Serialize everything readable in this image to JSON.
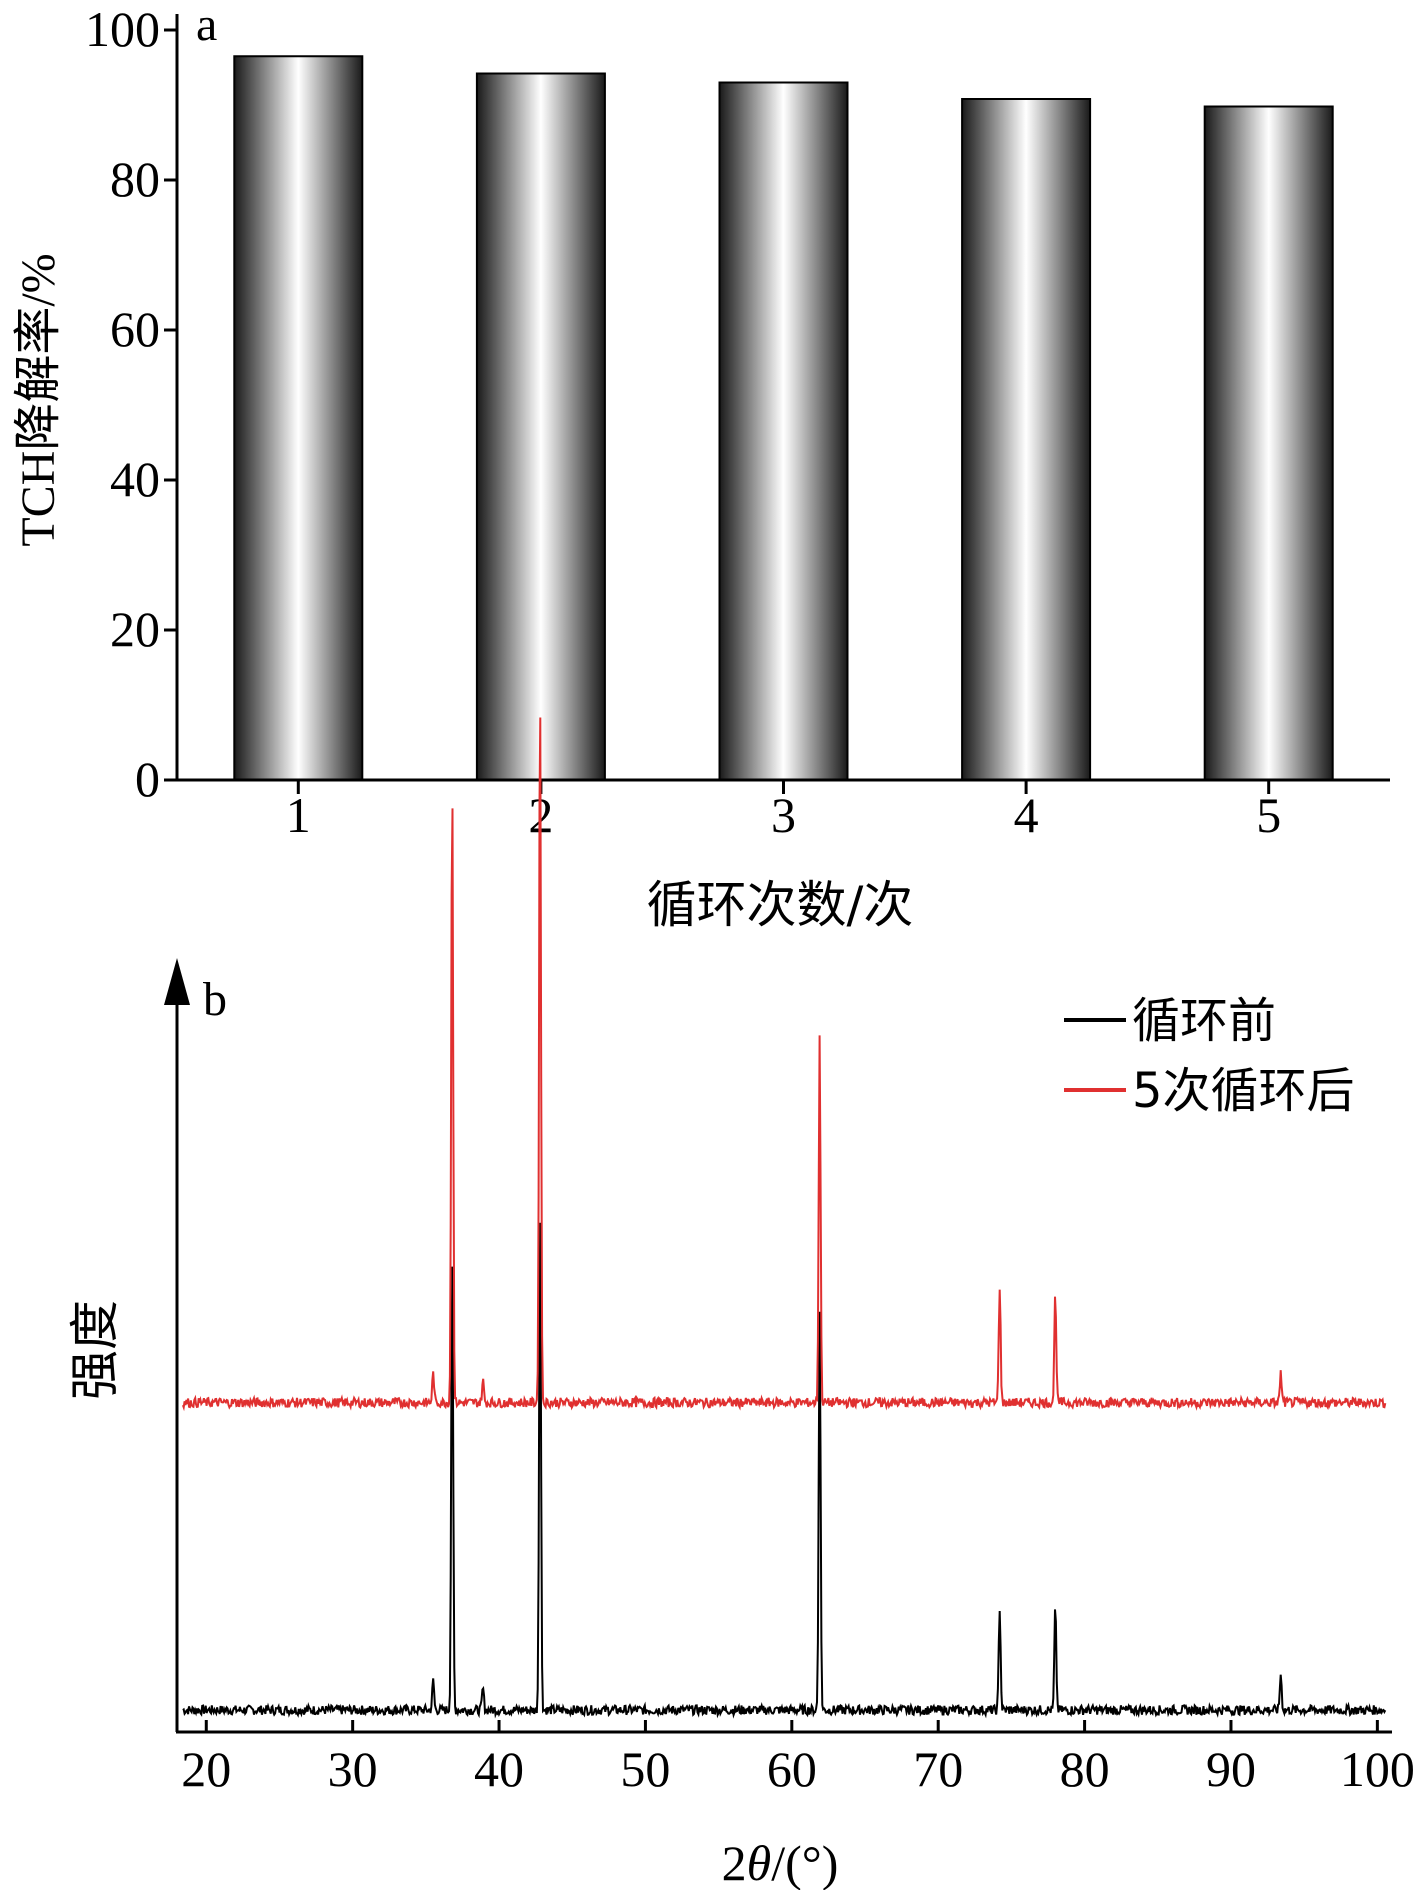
{
  "chart_data": [
    {
      "type": "bar",
      "panel_label": "a",
      "categories": [
        "1",
        "2",
        "3",
        "4",
        "5"
      ],
      "values": [
        96.5,
        94.2,
        93.0,
        90.8,
        89.8
      ],
      "xlabel": "循环次数/次",
      "ylabel": "TCH降解率/%",
      "ylim": [
        0,
        100
      ],
      "yticks": [
        "0",
        "20",
        "40",
        "60",
        "80",
        "100"
      ],
      "grid": false,
      "colors": {
        "bar_dark": "#1a1a1a",
        "bar_light": "#ffffff"
      }
    },
    {
      "type": "line",
      "panel_label": "b",
      "xlabel_prefix": "2",
      "xlabel_symbol": "θ",
      "xlabel_suffix": "/(°)",
      "ylabel": "强度",
      "xlim": [
        18,
        101
      ],
      "xticks": [
        "20",
        "30",
        "40",
        "50",
        "60",
        "70",
        "80",
        "90",
        "100"
      ],
      "xtick_values": [
        20,
        30,
        40,
        50,
        60,
        70,
        80,
        90,
        100
      ],
      "legend_position": "top-right",
      "grid": false,
      "peaks": [
        {
          "x": 35.5,
          "h": 0.04
        },
        {
          "x": 36.8,
          "h": 1.0
        },
        {
          "x": 38.9,
          "h": 0.03
        },
        {
          "x": 42.8,
          "h": 1.0
        },
        {
          "x": 61.9,
          "h": 1.0
        },
        {
          "x": 74.2,
          "h": 1.0
        },
        {
          "x": 78.0,
          "h": 1.0
        },
        {
          "x": 93.4,
          "h": 0.05
        }
      ],
      "series": [
        {
          "name": "循环前",
          "color": "#000000",
          "baseline": 0.03,
          "peak_heights": [
            0.04,
            0.63,
            0.03,
            0.7,
            0.55,
            0.14,
            0.14,
            0.05
          ]
        },
        {
          "name": "5次循环后",
          "color": "#e03030",
          "baseline": 0.45,
          "peak_heights": [
            0.04,
            0.85,
            0.03,
            0.99,
            0.5,
            0.16,
            0.15,
            0.04
          ]
        }
      ]
    }
  ]
}
